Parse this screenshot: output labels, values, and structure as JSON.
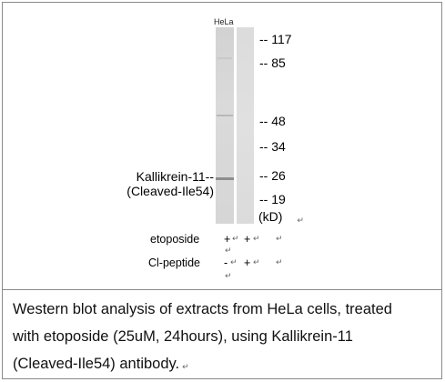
{
  "sample_label": "HeLa",
  "markers": [
    "117",
    "85",
    "48",
    "34",
    "26",
    "19"
  ],
  "marker_prefix": "--",
  "unit": "(kD)",
  "target": {
    "line1": "Kallikrein-11--",
    "line2": "(Cleaved-Ile54)"
  },
  "rows": [
    {
      "label": "etoposide",
      "lane1": "+",
      "lane2": "+"
    },
    {
      "label": "Cl-peptide",
      "lane1": "-",
      "lane2": "+"
    }
  ],
  "paragraph_mark": "↵",
  "caption": {
    "line1": "Western blot analysis of extracts from HeLa cells, treated",
    "line2": "with etoposide (25uM, 24hours), using Kallikrein-11",
    "line3": "(Cleaved-Ile54) antibody."
  }
}
